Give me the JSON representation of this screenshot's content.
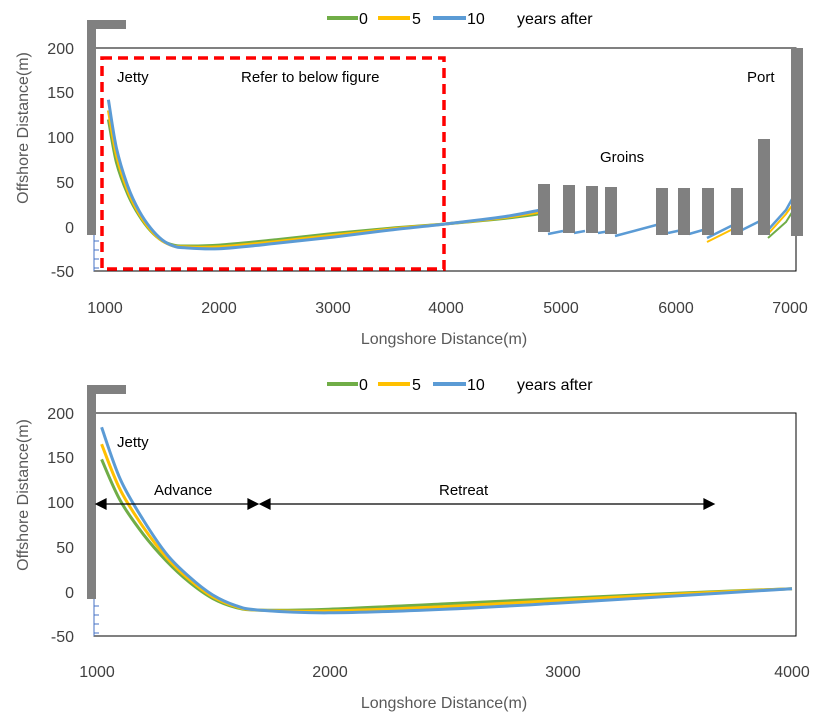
{
  "colors": {
    "series_0": "#70ad47",
    "series_5": "#ffc000",
    "series_10": "#5b9bd5",
    "structure": "#808080",
    "box": "#ff0000",
    "axis": "#4472c4"
  },
  "chart_data": [
    {
      "type": "line",
      "xlabel": "Longshore Distance(m)",
      "ylabel": "Offshore Distance(m)",
      "xlim": [
        1000,
        7000
      ],
      "ylim": [
        -50,
        200
      ],
      "x_ticks": [
        "1000",
        "2000",
        "3000",
        "4000",
        "5000",
        "6000",
        "7000"
      ],
      "y_ticks": [
        "-50",
        "0",
        "50",
        "100",
        "150",
        "200"
      ],
      "legend_suffix": "years after",
      "legend_position": "top",
      "series": [
        {
          "name": "0",
          "x": [
            1030,
            1100,
            1200,
            1300,
            1400,
            1500,
            1600,
            1700,
            2000,
            2500,
            3000,
            3500,
            4000,
            4500,
            4800
          ],
          "y": [
            120,
            72,
            36,
            12,
            -5,
            -16,
            -21,
            -22,
            -21,
            -15,
            -8,
            -2,
            3,
            9,
            14
          ]
        },
        {
          "name": "5",
          "x": [
            1030,
            1100,
            1200,
            1300,
            1400,
            1500,
            1600,
            1700,
            2000,
            2500,
            3000,
            3500,
            4000,
            4500,
            4800
          ],
          "y": [
            130,
            80,
            40,
            14,
            -4,
            -16,
            -22,
            -23,
            -23,
            -17,
            -10,
            -3,
            3,
            10,
            16
          ]
        },
        {
          "name": "10",
          "x": [
            1030,
            1100,
            1200,
            1300,
            1400,
            1500,
            1600,
            1700,
            2000,
            2500,
            3000,
            3500,
            4000,
            4500,
            4800
          ],
          "y": [
            142,
            88,
            45,
            17,
            -2,
            -15,
            -22,
            -24,
            -25,
            -19,
            -12,
            -4,
            3,
            11,
            18
          ]
        }
      ],
      "annotations": {
        "jetty": "Jetty",
        "box_note": "Refer to below figure",
        "groins": "Groins",
        "port": "Port"
      }
    },
    {
      "type": "line",
      "xlabel": "Longshore Distance(m)",
      "ylabel": "Offshore Distance(m)",
      "xlim": [
        1000,
        4000
      ],
      "ylim": [
        -50,
        200
      ],
      "x_ticks": [
        "1000",
        "2000",
        "3000",
        "4000"
      ],
      "y_ticks": [
        "-50",
        "0",
        "50",
        "100",
        "150",
        "200"
      ],
      "legend_suffix": "years after",
      "legend_position": "top",
      "series": [
        {
          "name": "0",
          "x": [
            1020,
            1100,
            1200,
            1300,
            1400,
            1500,
            1600,
            1700,
            2000,
            2500,
            3000,
            3500,
            4000
          ],
          "y": [
            148,
            102,
            64,
            34,
            10,
            -8,
            -18,
            -21,
            -20,
            -14,
            -8,
            -2,
            3
          ]
        },
        {
          "name": "5",
          "x": [
            1020,
            1100,
            1200,
            1300,
            1400,
            1500,
            1600,
            1700,
            2000,
            2500,
            3000,
            3500,
            4000
          ],
          "y": [
            165,
            114,
            72,
            38,
            13,
            -6,
            -17,
            -21,
            -22,
            -17,
            -10,
            -3,
            3
          ]
        },
        {
          "name": "10",
          "x": [
            1020,
            1100,
            1200,
            1300,
            1400,
            1500,
            1600,
            1700,
            2000,
            2500,
            3000,
            3500,
            4000
          ],
          "y": [
            184,
            126,
            80,
            42,
            16,
            -4,
            -16,
            -21,
            -24,
            -20,
            -13,
            -5,
            3
          ]
        }
      ],
      "annotations": {
        "jetty": "Jetty",
        "advance": "Advance",
        "retreat": "Retreat"
      }
    }
  ]
}
